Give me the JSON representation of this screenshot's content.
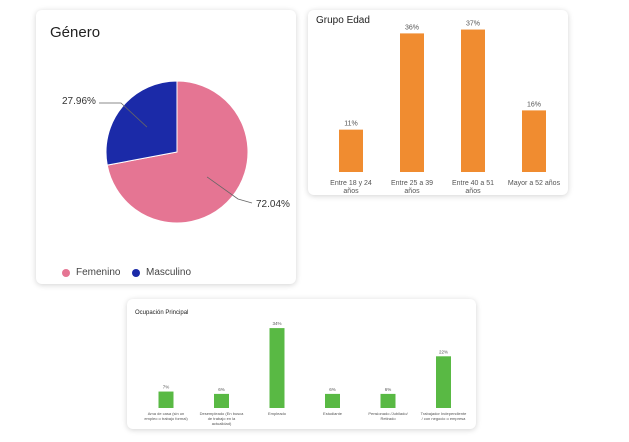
{
  "colors": {
    "female": "#e57593",
    "male": "#1b2aa8",
    "orange": "#f08c30",
    "green": "#59b944",
    "label_line": "#666666"
  },
  "genero": {
    "title": "Género",
    "legend": [
      "Femenino",
      "Masculino"
    ],
    "labels": [
      "72.04%",
      "27.96%"
    ]
  },
  "edad": {
    "title": "Grupo Edad",
    "value_labels": [
      "11%",
      "36%",
      "37%",
      "16%"
    ],
    "category_labels": [
      [
        "Entre 18 y 24",
        "años"
      ],
      [
        "Entre 25 a 39",
        "años"
      ],
      [
        "Entre 40 a 51",
        "años"
      ],
      [
        "Mayor a 52 años"
      ]
    ]
  },
  "ocupacion": {
    "title": "Ocupación Principal",
    "value_labels": [
      "7%",
      "6%",
      "34%",
      "6%",
      "6%",
      "22%"
    ],
    "category_labels": [
      [
        "Ama de casa (sin un",
        "empleo o trabajo formal)"
      ],
      [
        "Desempleado (En busca",
        "de trabajo en la",
        "actualidad)"
      ],
      [
        "Empleado"
      ],
      [
        "Estudiante"
      ],
      [
        "Pensionado /Jubilado/",
        "Retirado"
      ],
      [
        "Trabajador Independiente",
        "/ con negocio o empresa"
      ]
    ]
  },
  "chart_data": [
    {
      "type": "pie",
      "title": "Género",
      "categories": [
        "Femenino",
        "Masculino"
      ],
      "values": [
        72.04,
        27.96
      ],
      "legend": "bottom"
    },
    {
      "type": "bar",
      "title": "Grupo Edad",
      "categories": [
        "Entre 18 y 24 años",
        "Entre 25 a 39 años",
        "Entre 40 a 51 años",
        "Mayor a 52 años"
      ],
      "values": [
        11,
        36,
        37,
        16
      ],
      "ylim": [
        0,
        40
      ],
      "grid": false
    },
    {
      "type": "bar",
      "title": "Ocupación Principal",
      "categories": [
        "Ama de casa (sin un empleo o trabajo formal)",
        "Desempleado (En busca de trabajo en la actualidad)",
        "Empleado",
        "Estudiante",
        "Pensionado /Jubilado/ Retirado",
        "Trabajador Independiente / con negocio o empresa"
      ],
      "values": [
        7,
        6,
        34,
        6,
        6,
        22
      ],
      "ylim": [
        0,
        40
      ],
      "grid": false
    }
  ]
}
